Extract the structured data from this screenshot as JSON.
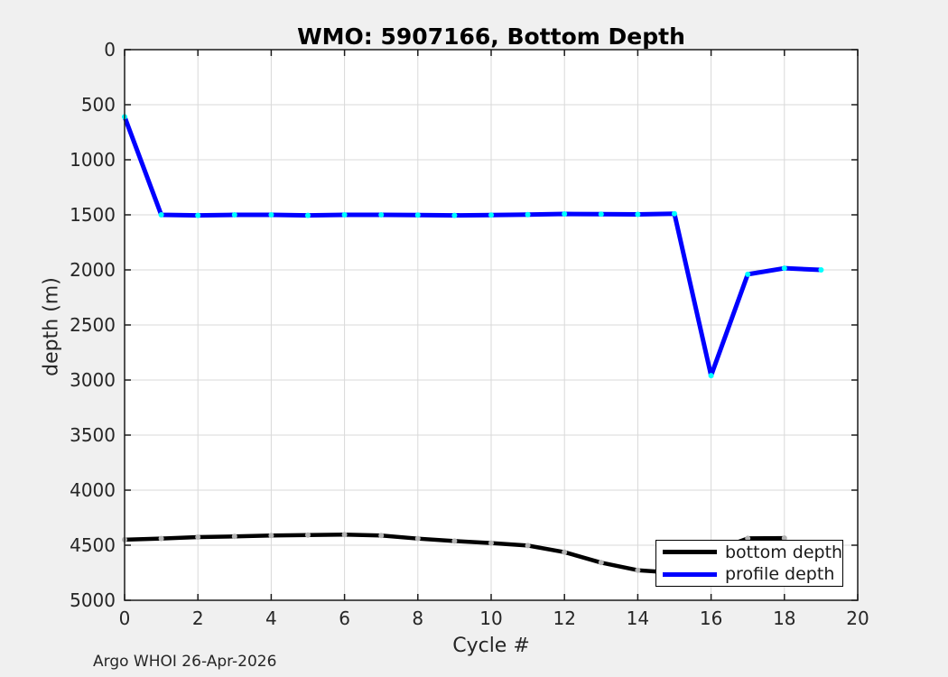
{
  "figure": {
    "background": "#f0f0f0",
    "plot_background": "#ffffff",
    "grid_color": "#d9d9d9",
    "axis_color": "#1a1a1a",
    "watermark": "Argo WHOI 26-Apr-2026"
  },
  "chart_data": {
    "type": "line",
    "title": "WMO: 5907166, Bottom Depth",
    "xlabel": "Cycle #",
    "ylabel": "depth (m)",
    "xlim": [
      0,
      20
    ],
    "ylim": [
      0,
      5000
    ],
    "y_axis_reversed": true,
    "grid": true,
    "xticks": [
      0,
      2,
      4,
      6,
      8,
      10,
      12,
      14,
      16,
      18,
      20
    ],
    "yticks": [
      0,
      500,
      1000,
      1500,
      2000,
      2500,
      3000,
      3500,
      4000,
      4500,
      5000
    ],
    "legend": {
      "position": "bottom-right",
      "background": "#ffffff",
      "border": "#000000"
    },
    "series": [
      {
        "name": "bottom depth",
        "color": "#000000",
        "marker_color": "#b3b3b3",
        "line_width": 4.5,
        "x": [
          0,
          1,
          2,
          3,
          4,
          5,
          6,
          7,
          8,
          9,
          10,
          11,
          12,
          13,
          14,
          15,
          16,
          17,
          18
        ],
        "values": [
          4450,
          4440,
          4426,
          4420,
          4412,
          4408,
          4404,
          4412,
          4440,
          4462,
          4481,
          4503,
          4563,
          4658,
          4727,
          4750,
          4560,
          4438,
          4435
        ]
      },
      {
        "name": "profile depth",
        "color": "#0000ff",
        "marker_color": "#00ffff",
        "line_width": 5,
        "x": [
          0,
          1,
          2,
          3,
          4,
          5,
          6,
          7,
          8,
          9,
          10,
          11,
          12,
          13,
          14,
          15,
          16,
          17,
          18,
          19
        ],
        "values": [
          610,
          1500,
          1505,
          1500,
          1500,
          1505,
          1500,
          1500,
          1502,
          1505,
          1502,
          1498,
          1492,
          1494,
          1496,
          1490,
          2960,
          2040,
          1985,
          2000
        ]
      }
    ]
  }
}
